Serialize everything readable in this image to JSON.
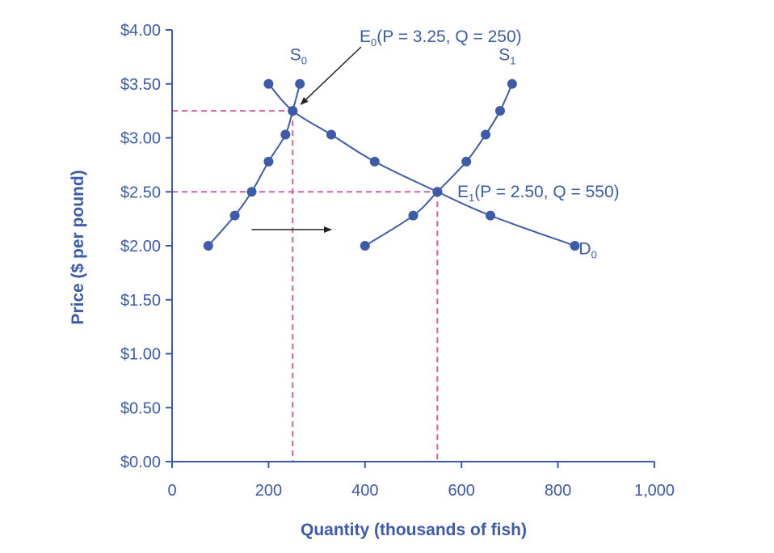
{
  "chart_data": {
    "type": "line",
    "xlabel": "Quantity (thousands of fish)",
    "ylabel": "Price ($ per pound)",
    "xlim": [
      0,
      1000
    ],
    "ylim": [
      0,
      4
    ],
    "x_ticks": [
      0,
      200,
      400,
      600,
      800,
      1000
    ],
    "x_tick_labels": [
      "0",
      "200",
      "400",
      "600",
      "800",
      "1,000"
    ],
    "y_ticks": [
      0,
      0.5,
      1,
      1.5,
      2,
      2.5,
      3,
      3.5,
      4
    ],
    "y_tick_labels": [
      "$0.00",
      "$0.50",
      "$1.00",
      "$1.50",
      "$2.00",
      "$2.50",
      "$3.00",
      "$3.50",
      "$4.00"
    ],
    "grid": false,
    "colors": {
      "curve": "#3d5ba9",
      "guide": "#d45fa8",
      "arrow": "#222222",
      "text": "#3d5ba9"
    },
    "series": [
      {
        "name": "S0",
        "name_main": "S",
        "name_sub": "0",
        "points": [
          [
            75,
            2.0
          ],
          [
            130,
            2.28
          ],
          [
            165,
            2.5
          ],
          [
            200,
            2.78
          ],
          [
            235,
            3.03
          ],
          [
            250,
            3.25
          ],
          [
            265,
            3.5
          ]
        ]
      },
      {
        "name": "S1",
        "name_main": "S",
        "name_sub": "1",
        "points": [
          [
            400,
            2.0
          ],
          [
            500,
            2.28
          ],
          [
            550,
            2.5
          ],
          [
            610,
            2.78
          ],
          [
            650,
            3.03
          ],
          [
            680,
            3.25
          ],
          [
            705,
            3.5
          ]
        ]
      },
      {
        "name": "D0",
        "name_main": "D",
        "name_sub": "0",
        "points": [
          [
            200,
            3.5
          ],
          [
            250,
            3.25
          ],
          [
            330,
            3.03
          ],
          [
            420,
            2.78
          ],
          [
            550,
            2.5
          ],
          [
            660,
            2.28
          ],
          [
            835,
            2.0
          ]
        ]
      }
    ],
    "equilibria": [
      {
        "name_main": "E",
        "name_sub": "0",
        "label_rest": "(P = 3.25, Q = 250)",
        "x": 250,
        "y": 3.25
      },
      {
        "name_main": "E",
        "name_sub": "1",
        "label_rest": "(P = 2.50, Q = 550)",
        "x": 550,
        "y": 2.5
      }
    ],
    "shift_arrow": {
      "from": [
        165,
        2.15
      ],
      "to": [
        330,
        2.15
      ]
    }
  }
}
